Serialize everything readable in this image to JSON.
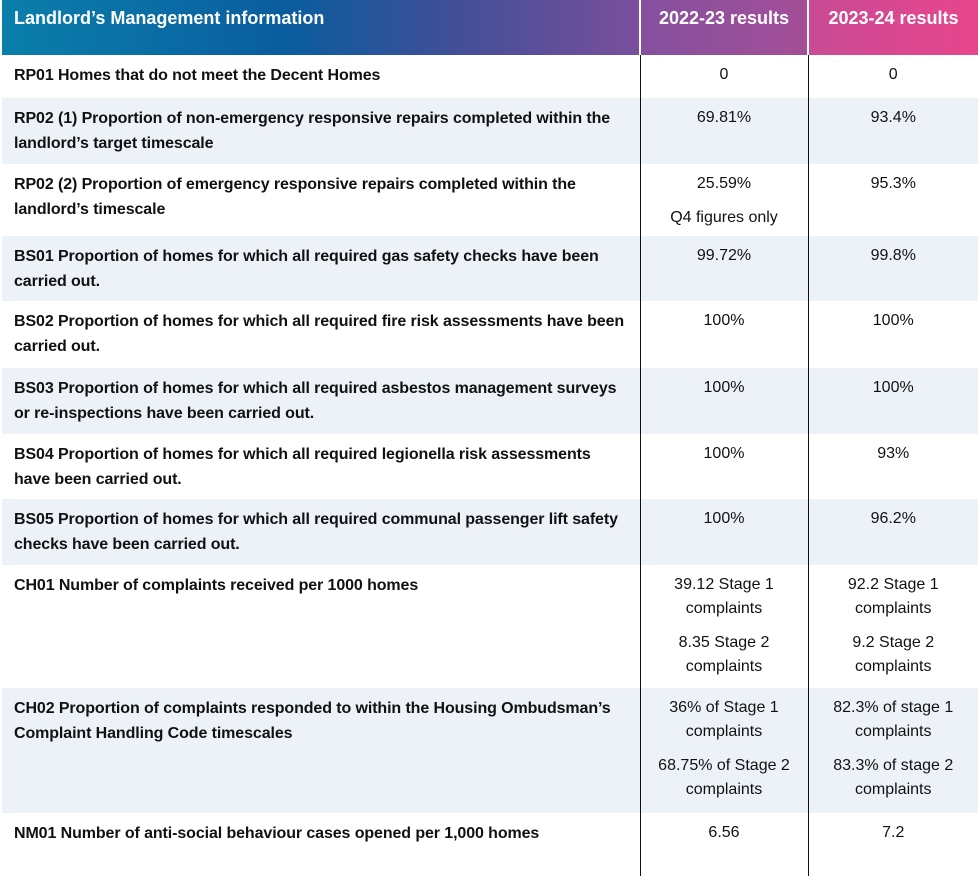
{
  "header": {
    "title": "Landlord’s Management information",
    "col1": "2022-23 results",
    "col2": "2023-24 results"
  },
  "colors": {
    "header_start": "#0a7fab",
    "header_mid": "#0a5d9e",
    "header_purple": "#84509e",
    "header_pink": "#e8468c",
    "row_alt": "#edf2f9"
  },
  "rows": [
    {
      "label": "RP01 Homes that do not meet the Decent Homes",
      "v1": [
        "0"
      ],
      "v2": [
        "0"
      ]
    },
    {
      "label": "RP02 (1) Proportion of non-emergency responsive repairs completed within the landlord’s target timescale",
      "v1": [
        "69.81%"
      ],
      "v2": [
        "93.4%"
      ]
    },
    {
      "label": "RP02 (2) Proportion of emergency responsive repairs completed within the landlord’s timescale",
      "v1": [
        "25.59%",
        "Q4 figures only"
      ],
      "v2": [
        "95.3%"
      ]
    },
    {
      "label": "BS01 Proportion of homes for which all required gas safety checks have been carried out.",
      "v1": [
        "99.72%"
      ],
      "v2": [
        "99.8%"
      ]
    },
    {
      "label": "BS02 Proportion of homes for which all required fire risk assessments have been carried out.",
      "v1": [
        "100%"
      ],
      "v2": [
        "100%"
      ]
    },
    {
      "label": "BS03 Proportion of homes for which all required asbestos management surveys or re-inspections have been carried out.",
      "v1": [
        "100%"
      ],
      "v2": [
        "100%"
      ]
    },
    {
      "label": "BS04 Proportion of homes for which all required legionella risk assessments have been carried out.",
      "v1": [
        "100%"
      ],
      "v2": [
        "93%"
      ]
    },
    {
      "label": "BS05 Proportion of homes for which all required communal passenger lift safety checks have been carried out.",
      "v1": [
        "100%"
      ],
      "v2": [
        "96.2%"
      ]
    },
    {
      "label": "CH01 Number of complaints received per 1000 homes",
      "v1": [
        "39.12 Stage 1 complaints",
        "8.35 Stage 2 complaints"
      ],
      "v2": [
        "92.2 Stage 1 complaints",
        "9.2 Stage 2 complaints"
      ]
    },
    {
      "label": "CH02 Proportion of complaints responded to within the Housing Ombudsman’s Complaint Handling Code timescales",
      "v1": [
        "36% of Stage 1 complaints",
        "68.75% of Stage 2 complaints"
      ],
      "v2": [
        "82.3% of stage 1 complaints",
        "83.3% of stage 2 complaints"
      ]
    },
    {
      "label": "NM01 Number of anti-social behaviour cases opened per 1,000 homes",
      "v1": [
        "6.56"
      ],
      "v2": [
        "7.2"
      ]
    }
  ]
}
